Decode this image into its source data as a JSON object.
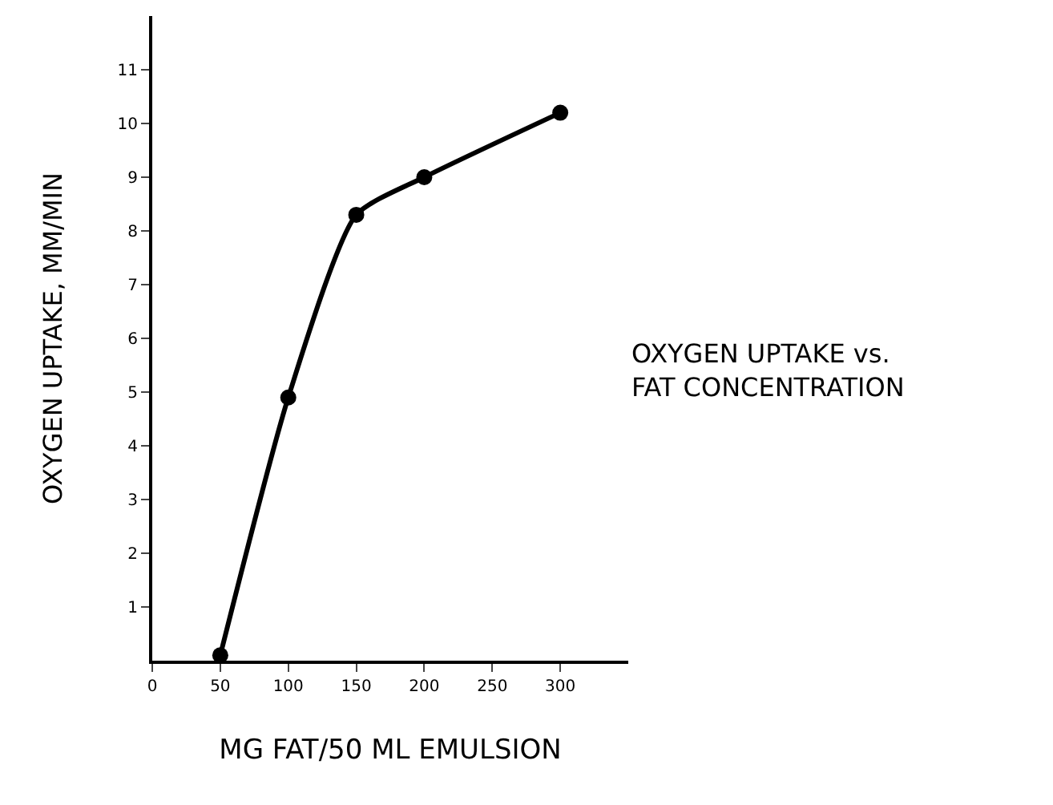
{
  "chart_data": {
    "type": "line",
    "x": [
      50,
      100,
      150,
      200,
      300
    ],
    "series": [
      {
        "color": "#000000",
        "values": [
          0.1,
          4.9,
          8.3,
          9.0,
          10.2
        ]
      }
    ],
    "xlabel": "MG FAT/50 ML EMULSION",
    "ylabel": "OXYGEN UPTAKE, MM/MIN",
    "annotations": [
      "OXYGEN UPTAKE vs.\nFAT CONCENTRATION"
    ],
    "xlim": [
      0,
      350
    ],
    "xticks": [
      0,
      50,
      100,
      150,
      200,
      250,
      300
    ],
    "ylim": [
      0,
      12
    ],
    "yticks": [
      1,
      2,
      3,
      4,
      5,
      6,
      7,
      8,
      9,
      10,
      11
    ],
    "marker": "circle",
    "line_style": "solid",
    "legend": false
  }
}
